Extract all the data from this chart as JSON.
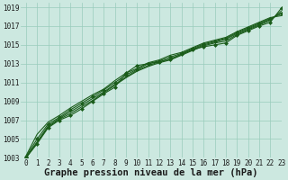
{
  "title": "Graphe pression niveau de la mer (hPa)",
  "bg_color": "#cce8e0",
  "grid_color": "#99ccbb",
  "line_color": "#1a5c1a",
  "marker_color": "#1a5c1a",
  "xlim": [
    -0.5,
    23
  ],
  "ylim": [
    1003,
    1019.5
  ],
  "xticks": [
    0,
    1,
    2,
    3,
    4,
    5,
    6,
    7,
    8,
    9,
    10,
    11,
    12,
    13,
    14,
    15,
    16,
    17,
    18,
    19,
    20,
    21,
    22,
    23
  ],
  "yticks": [
    1003,
    1005,
    1007,
    1009,
    1011,
    1013,
    1015,
    1017,
    1019
  ],
  "series": [
    [
      1003.0,
      1004.5,
      1006.2,
      1007.0,
      1007.5,
      1008.2,
      1009.0,
      1009.8,
      1010.5,
      1012.0,
      1012.8,
      1013.0,
      1013.2,
      1013.5,
      1014.0,
      1014.5,
      1014.8,
      1015.0,
      1015.2,
      1016.0,
      1016.5,
      1017.0,
      1017.4,
      1018.9
    ],
    [
      1003.0,
      1004.6,
      1006.3,
      1007.1,
      1007.7,
      1008.4,
      1009.1,
      1009.9,
      1010.7,
      1011.5,
      1012.2,
      1012.7,
      1013.1,
      1013.4,
      1013.9,
      1014.4,
      1014.9,
      1015.2,
      1015.4,
      1016.1,
      1016.6,
      1017.1,
      1017.6,
      1018.6
    ],
    [
      1003.0,
      1004.7,
      1006.4,
      1007.2,
      1007.9,
      1008.6,
      1009.3,
      1010.0,
      1010.8,
      1011.6,
      1012.3,
      1012.8,
      1013.2,
      1013.5,
      1014.0,
      1014.5,
      1015.0,
      1015.3,
      1015.6,
      1016.2,
      1016.7,
      1017.2,
      1017.7,
      1018.4
    ],
    [
      1003.1,
      1005.0,
      1006.6,
      1007.3,
      1008.1,
      1008.8,
      1009.5,
      1010.2,
      1011.0,
      1011.8,
      1012.4,
      1013.0,
      1013.3,
      1013.7,
      1014.1,
      1014.6,
      1015.1,
      1015.4,
      1015.7,
      1016.3,
      1016.8,
      1017.3,
      1017.8,
      1018.3
    ],
    [
      1003.2,
      1005.5,
      1006.8,
      1007.5,
      1008.3,
      1009.0,
      1009.7,
      1010.3,
      1011.2,
      1012.0,
      1012.5,
      1013.1,
      1013.4,
      1013.9,
      1014.2,
      1014.7,
      1015.2,
      1015.5,
      1015.8,
      1016.4,
      1016.9,
      1017.4,
      1017.9,
      1018.1
    ]
  ],
  "marker_series": [
    0,
    3
  ],
  "title_fontsize": 7.5,
  "tick_fontsize": 5.5,
  "marker_size": 2.0,
  "line_width": 0.8
}
